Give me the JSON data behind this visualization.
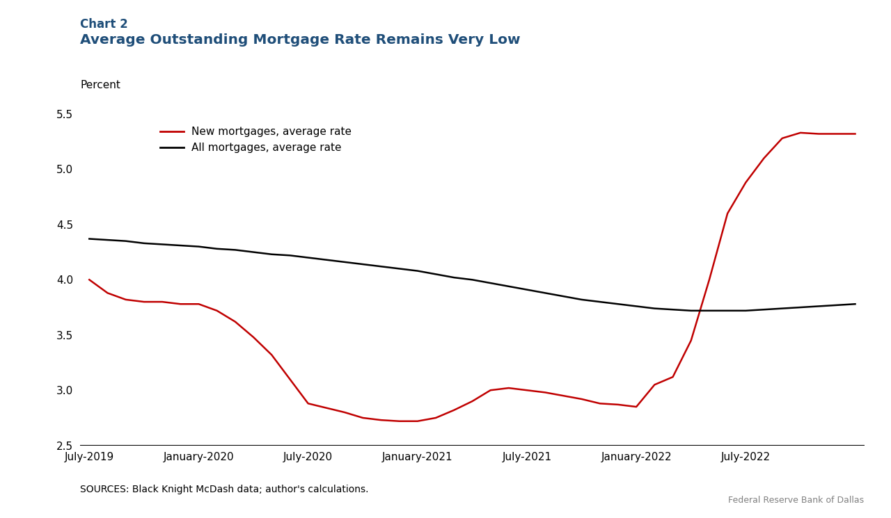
{
  "title_line1": "Chart 2",
  "title_line2": "Average Outstanding Mortgage Rate Remains Very Low",
  "ylabel": "Percent",
  "source_text": "SOURCES: Black Knight McDash data; author's calculations.",
  "fed_text": "Federal Reserve Bank of Dallas",
  "title_color": "#1F4E79",
  "background_color": "#FFFFFF",
  "ylim": [
    2.5,
    5.5
  ],
  "yticks": [
    2.5,
    3.0,
    3.5,
    4.0,
    4.5,
    5.0,
    5.5
  ],
  "x_tick_positions": [
    0,
    6,
    12,
    18,
    24,
    30,
    36,
    42
  ],
  "x_tick_labels": [
    "July-2019",
    "January-2020",
    "July-2020",
    "January-2021",
    "July-2021",
    "January-2022",
    "July-2022",
    ""
  ],
  "new_mortgages": {
    "label": "New mortgages, average rate",
    "color": "#C00000",
    "x": [
      0,
      1,
      2,
      3,
      4,
      5,
      6,
      7,
      8,
      9,
      10,
      11,
      12,
      13,
      14,
      15,
      16,
      17,
      18,
      19,
      20,
      21,
      22,
      23,
      24,
      25,
      26,
      27,
      28,
      29,
      30,
      31,
      32,
      33,
      34,
      35,
      36,
      37,
      38,
      39,
      40,
      41,
      42
    ],
    "y": [
      4.0,
      3.88,
      3.82,
      3.8,
      3.8,
      3.78,
      3.78,
      3.72,
      3.62,
      3.48,
      3.32,
      3.1,
      2.88,
      2.84,
      2.8,
      2.75,
      2.73,
      2.72,
      2.72,
      2.75,
      2.82,
      2.9,
      3.0,
      3.02,
      3.0,
      2.98,
      2.95,
      2.92,
      2.88,
      2.87,
      2.85,
      3.05,
      3.12,
      3.45,
      4.0,
      4.6,
      4.88,
      5.1,
      5.28,
      5.33,
      5.32,
      5.32,
      5.32
    ]
  },
  "all_mortgages": {
    "label": "All mortgages, average rate",
    "color": "#000000",
    "x": [
      0,
      1,
      2,
      3,
      4,
      5,
      6,
      7,
      8,
      9,
      10,
      11,
      12,
      13,
      14,
      15,
      16,
      17,
      18,
      19,
      20,
      21,
      22,
      23,
      24,
      25,
      26,
      27,
      28,
      29,
      30,
      31,
      32,
      33,
      34,
      35,
      36,
      37,
      38,
      39,
      40,
      41,
      42
    ],
    "y": [
      4.37,
      4.36,
      4.35,
      4.33,
      4.32,
      4.31,
      4.3,
      4.28,
      4.27,
      4.25,
      4.23,
      4.22,
      4.2,
      4.18,
      4.16,
      4.14,
      4.12,
      4.1,
      4.08,
      4.05,
      4.02,
      4.0,
      3.97,
      3.94,
      3.91,
      3.88,
      3.85,
      3.82,
      3.8,
      3.78,
      3.76,
      3.74,
      3.73,
      3.72,
      3.72,
      3.72,
      3.72,
      3.73,
      3.74,
      3.75,
      3.76,
      3.77,
      3.78
    ]
  }
}
